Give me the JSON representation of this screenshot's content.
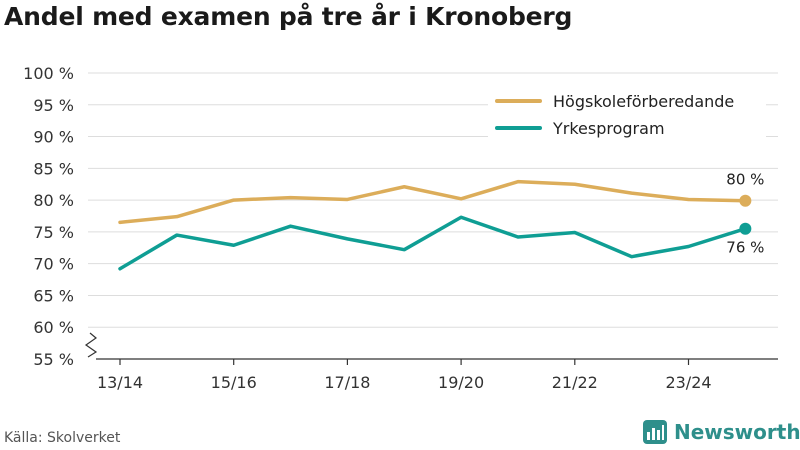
{
  "title": "Andel med examen på tre år i Kronoberg",
  "source": "Källa: Skolverket",
  "brand": {
    "name": "Newsworthy",
    "icon": "newsworthy-logo-icon",
    "color": "#2e8f8b"
  },
  "chart_data": {
    "type": "line",
    "title": "Andel med examen på tre år i Kronoberg",
    "xlabel": "",
    "ylabel": "",
    "ylim": [
      55,
      100
    ],
    "y_axis_break": true,
    "grid": true,
    "legend_position": "top-right",
    "x": [
      "13/14",
      "14/15",
      "15/16",
      "16/17",
      "17/18",
      "18/19",
      "19/20",
      "20/21",
      "21/22",
      "22/23",
      "23/24",
      "24/25"
    ],
    "x_tick_labels": [
      "13/14",
      "15/16",
      "17/18",
      "19/20",
      "21/22",
      "23/24"
    ],
    "y_tick_labels": [
      "55 %",
      "60 %",
      "65 %",
      "70 %",
      "75 %",
      "80 %",
      "85 %",
      "90 %",
      "95 %",
      "100 %"
    ],
    "series": [
      {
        "name": "Högskoleförberedande",
        "color": "#dcad5a",
        "values": [
          76.5,
          77.4,
          80.0,
          80.4,
          80.1,
          82.1,
          80.2,
          82.9,
          82.5,
          81.1,
          80.1,
          79.9
        ],
        "end_label": "80 %"
      },
      {
        "name": "Yrkesprogram",
        "color": "#0f9e94",
        "values": [
          69.2,
          74.5,
          72.9,
          75.9,
          73.9,
          72.2,
          77.3,
          74.2,
          74.9,
          71.1,
          72.7,
          75.5
        ],
        "end_label": "76 %"
      }
    ]
  }
}
